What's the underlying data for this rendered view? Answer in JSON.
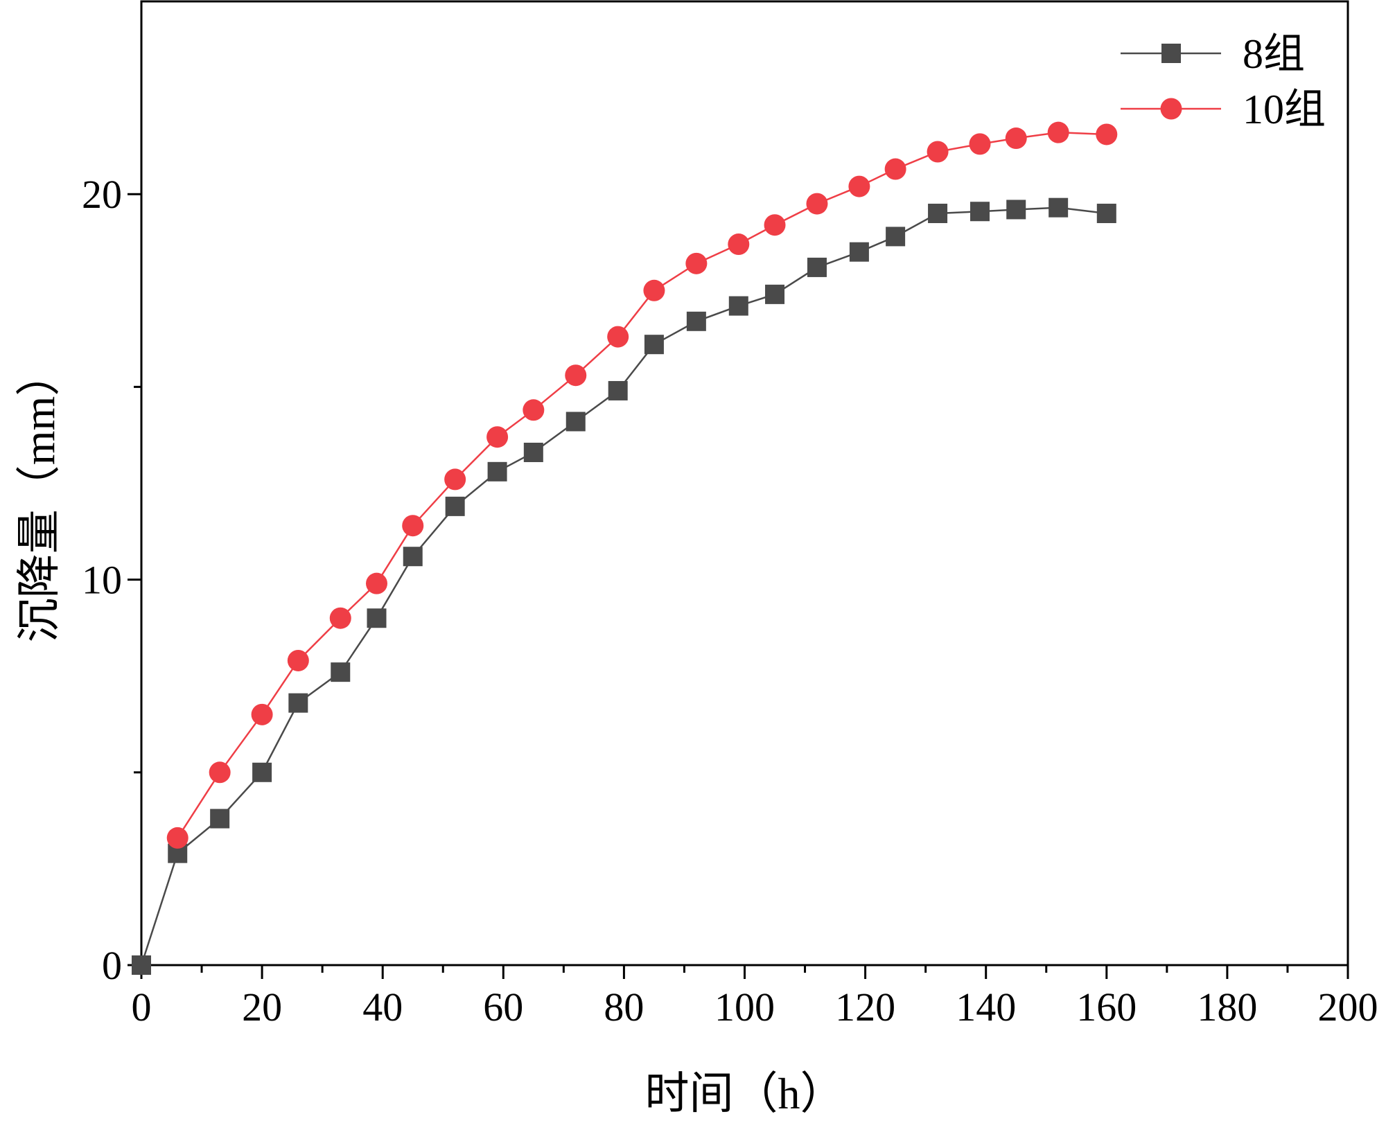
{
  "chart_data": {
    "type": "line",
    "title": "",
    "xlabel": "时间（h）",
    "ylabel": "沉降量（mm）",
    "xlim": [
      0,
      200
    ],
    "ylim": [
      0,
      25
    ],
    "x_ticks": [
      0,
      20,
      40,
      60,
      80,
      100,
      120,
      140,
      160,
      180,
      200
    ],
    "x_tick_labels": [
      "0",
      "20",
      "40",
      "60",
      "80",
      "100",
      "120",
      "140",
      "160",
      "180",
      "200"
    ],
    "y_ticks": [
      0,
      10,
      20
    ],
    "y_tick_labels": [
      "0",
      "10",
      "20"
    ],
    "y_minor_ticks": [
      5,
      15
    ],
    "x_minor_ticks": [
      10,
      30,
      50,
      70,
      90,
      110,
      130,
      150,
      170,
      190
    ],
    "grid": false,
    "legend_position": "top-right",
    "series": [
      {
        "name": "8组",
        "color": "#4a4a4a",
        "marker": "square",
        "x": [
          0,
          6,
          13,
          20,
          26,
          33,
          39,
          45,
          52,
          59,
          65,
          72,
          79,
          85,
          92,
          99,
          105,
          112,
          119,
          125,
          132,
          139,
          145,
          152,
          160
        ],
        "y": [
          0,
          2.9,
          3.8,
          5.0,
          6.8,
          7.6,
          9.0,
          10.6,
          11.9,
          12.8,
          13.3,
          14.1,
          14.9,
          16.1,
          16.7,
          17.1,
          17.4,
          18.1,
          18.5,
          18.9,
          19.5,
          19.55,
          19.6,
          19.65,
          19.5
        ]
      },
      {
        "name": "10组",
        "color": "#ef3e46",
        "marker": "circle",
        "x": [
          6,
          13,
          20,
          26,
          33,
          39,
          45,
          52,
          59,
          65,
          72,
          79,
          85,
          92,
          99,
          105,
          112,
          119,
          125,
          132,
          139,
          145,
          152,
          160
        ],
        "y": [
          3.3,
          5.0,
          6.5,
          7.9,
          9.0,
          9.9,
          11.4,
          12.6,
          13.7,
          14.4,
          15.3,
          16.3,
          17.5,
          18.2,
          18.7,
          19.2,
          19.75,
          20.2,
          20.65,
          21.1,
          21.3,
          21.45,
          21.6,
          21.55
        ]
      }
    ]
  }
}
